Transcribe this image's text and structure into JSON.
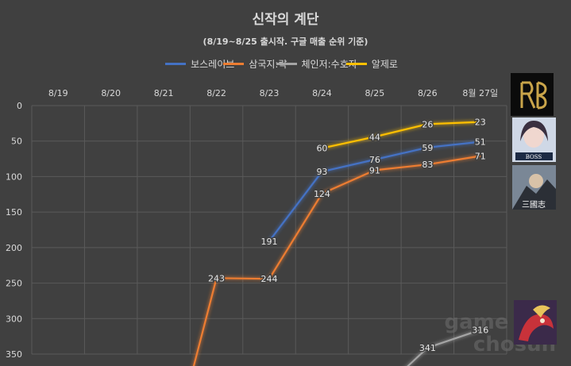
{
  "chart_data": {
    "type": "line",
    "title": "신작의 계단",
    "subtitle": "(8/19~8/25 출시작. 구글 매출 순위 기준)",
    "categories": [
      "8/19",
      "8/20",
      "8/21",
      "8/22",
      "8/23",
      "8/24",
      "8/25",
      "8/26",
      "8월 27일"
    ],
    "y_ticks": [
      "0",
      "50",
      "100",
      "150",
      "200",
      "250",
      "300",
      "350"
    ],
    "ylim": [
      0,
      350
    ],
    "y_inverted": true,
    "grid": true,
    "legend_position": "top",
    "series": [
      {
        "name": "보스레이브",
        "color": "#4472c4",
        "values": [
          null,
          null,
          null,
          null,
          191,
          93,
          76,
          59,
          51
        ]
      },
      {
        "name": "삼국지:략",
        "color": "#ed7d31",
        "values": [
          null,
          null,
          null,
          243,
          244,
          124,
          91,
          83,
          71
        ],
        "enters_from_below": true
      },
      {
        "name": "체인저:수호자",
        "color": "#a5a5a5",
        "values": [
          null,
          null,
          null,
          null,
          null,
          null,
          null,
          341,
          316
        ],
        "enters_from_below": true
      },
      {
        "name": "알제로",
        "color": "#ffc000",
        "values": [
          null,
          null,
          null,
          null,
          null,
          60,
          44,
          26,
          23
        ]
      }
    ]
  },
  "watermark": {
    "line1": "game",
    "line2": "chosun"
  }
}
